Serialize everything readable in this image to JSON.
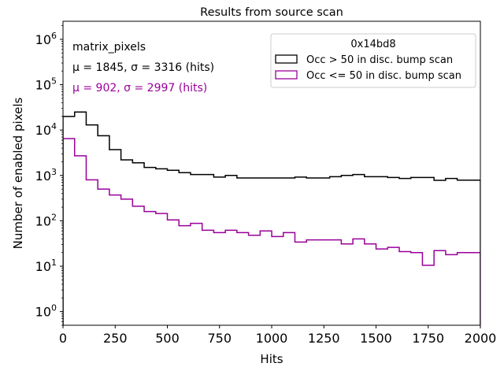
{
  "chart_data": {
    "type": "histogram-step",
    "title": "Results from source scan",
    "xlabel": "Hits",
    "ylabel": "Number of enabled pixels",
    "xlim": [
      0,
      2000
    ],
    "ylim": [
      0.5,
      2500000
    ],
    "yscale": "log",
    "grid": false,
    "x_ticks": [
      0,
      250,
      500,
      750,
      1000,
      1250,
      1500,
      1750,
      2000
    ],
    "x_tick_labels": [
      "0",
      "250",
      "500",
      "750",
      "1000",
      "1250",
      "1500",
      "1750",
      "2000"
    ],
    "y_ticks": [
      1,
      10,
      100,
      1000,
      10000,
      100000,
      1000000
    ],
    "y_tick_labels": [
      {
        "base": "10",
        "exp": "0"
      },
      {
        "base": "10",
        "exp": "1"
      },
      {
        "base": "10",
        "exp": "2"
      },
      {
        "base": "10",
        "exp": "3"
      },
      {
        "base": "10",
        "exp": "4"
      },
      {
        "base": "10",
        "exp": "5"
      },
      {
        "base": "10",
        "exp": "6"
      }
    ],
    "bin_edges_start": 0,
    "bin_width": 55.56,
    "series": [
      {
        "name": "Occ > 50 in disc. bump scan",
        "color": "#000000",
        "values": [
          20000,
          25000,
          13000,
          7500,
          3700,
          2200,
          1900,
          1500,
          1400,
          1300,
          1150,
          1050,
          1050,
          920,
          1000,
          880,
          880,
          880,
          880,
          880,
          920,
          880,
          880,
          940,
          1000,
          1050,
          940,
          940,
          900,
          860,
          900,
          900,
          780,
          860,
          790,
          790
        ]
      },
      {
        "name": "Occ <= 50 in disc. bump scan",
        "color": "#990099",
        "values": [
          6500,
          2700,
          800,
          500,
          370,
          300,
          210,
          160,
          145,
          105,
          78,
          88,
          62,
          55,
          62,
          55,
          48,
          60,
          45,
          55,
          34,
          38,
          38,
          38,
          31,
          40,
          31,
          24,
          26,
          21,
          20,
          10.5,
          22,
          18,
          20,
          20
        ]
      }
    ],
    "legend": {
      "title": "0x14bd8",
      "placement": "top-right"
    },
    "annotations": [
      {
        "text": "matrix_pixels",
        "color": "#000000"
      },
      {
        "text": "μ = 1845, σ = 3316 (hits)",
        "color": "#000000"
      },
      {
        "text": "μ = 902, σ = 2997 (hits)",
        "color": "#990099"
      }
    ]
  }
}
